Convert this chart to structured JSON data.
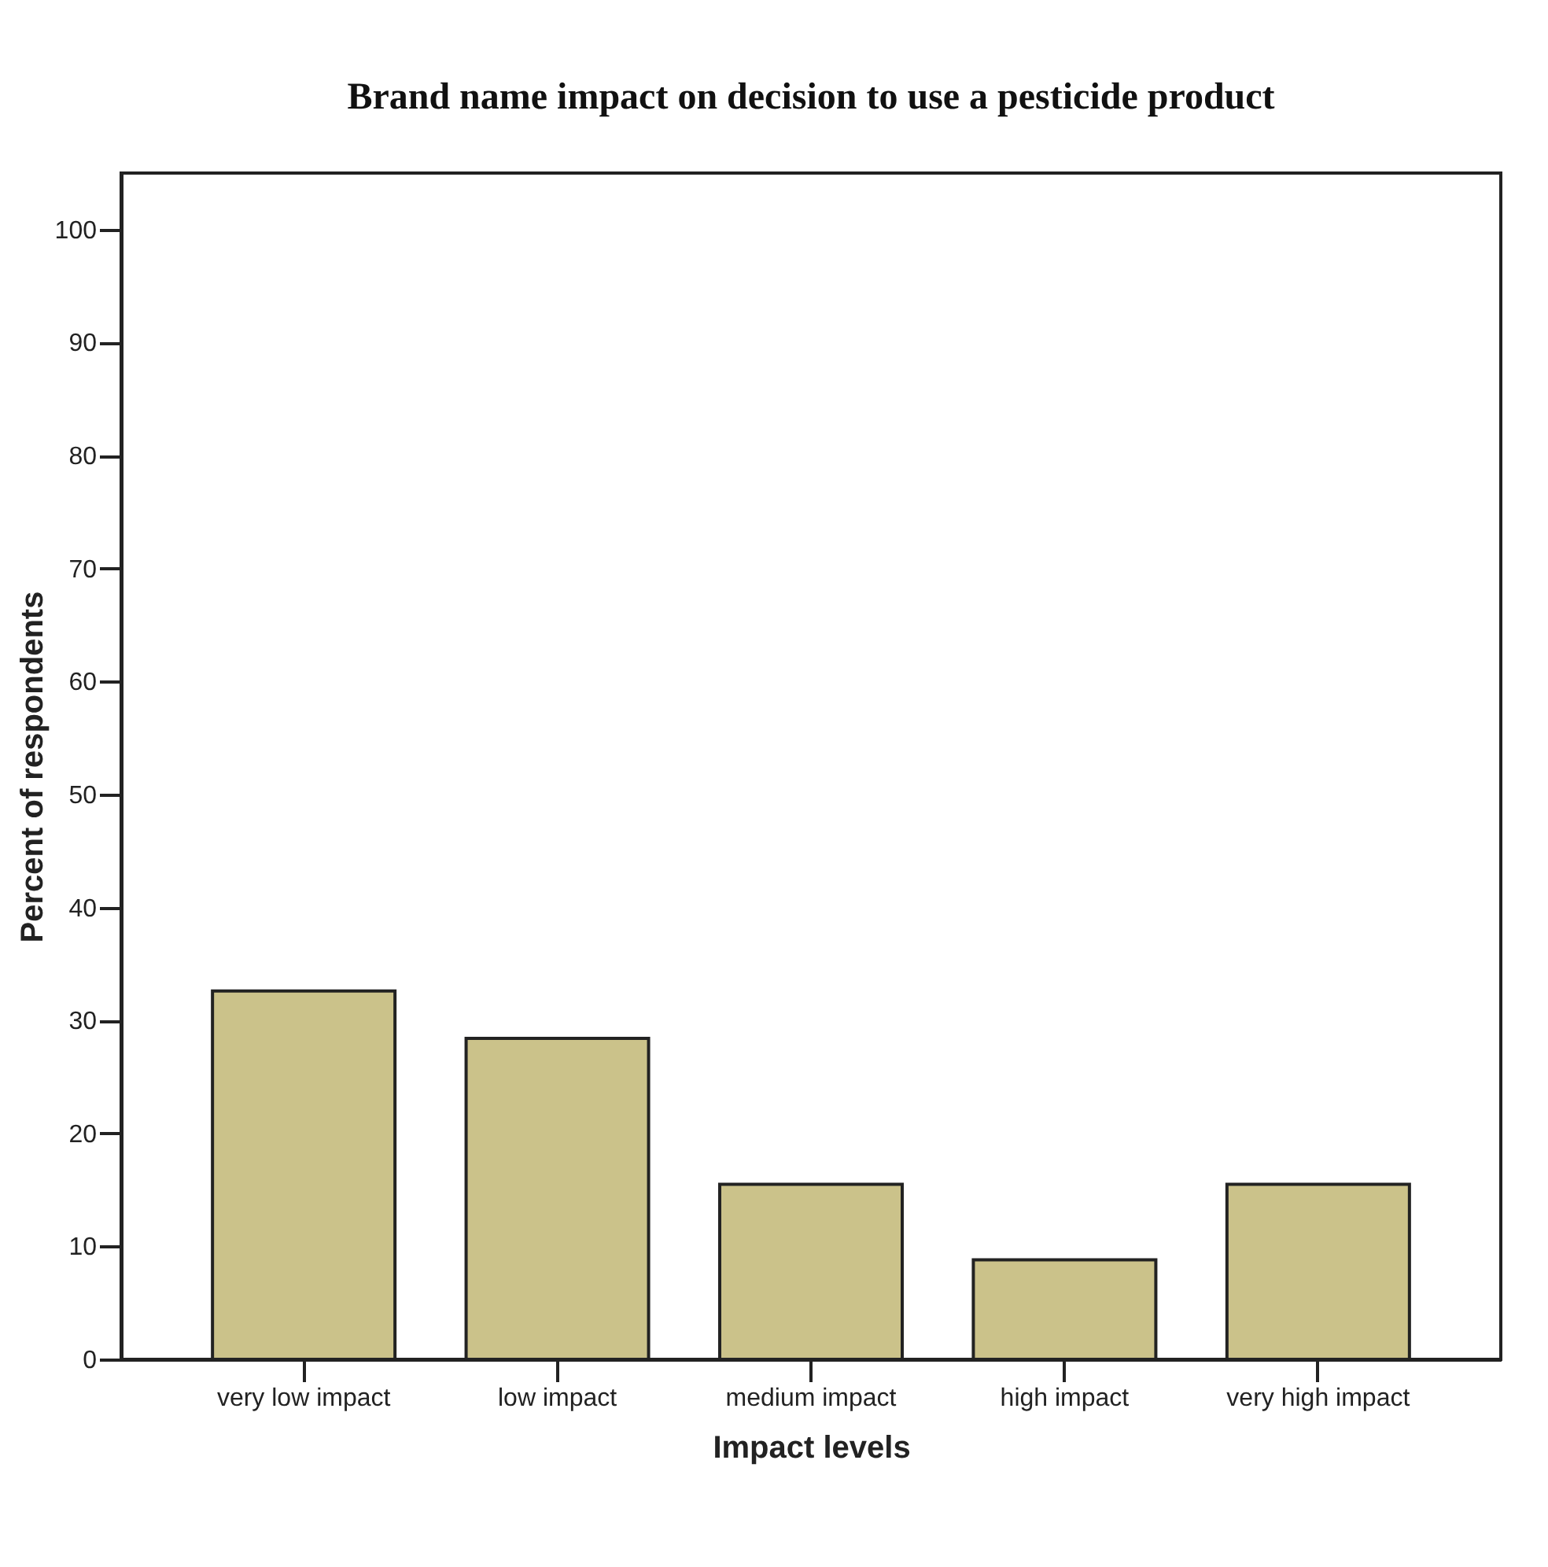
{
  "chart_data": {
    "type": "bar",
    "title": "Brand name impact on decision to use a pesticide product",
    "xlabel": "Impact levels",
    "ylabel": "Percent of respondents",
    "categories": [
      "very low impact",
      "low impact",
      "medium impact",
      "high impact",
      "very high impact"
    ],
    "values": [
      32.6,
      28.4,
      15.5,
      8.8,
      15.5
    ],
    "color": "#cbc28a",
    "ylim": [
      0,
      105
    ],
    "yticks": [
      0,
      10,
      20,
      30,
      40,
      50,
      60,
      70,
      80,
      90,
      100
    ],
    "grid": false
  }
}
